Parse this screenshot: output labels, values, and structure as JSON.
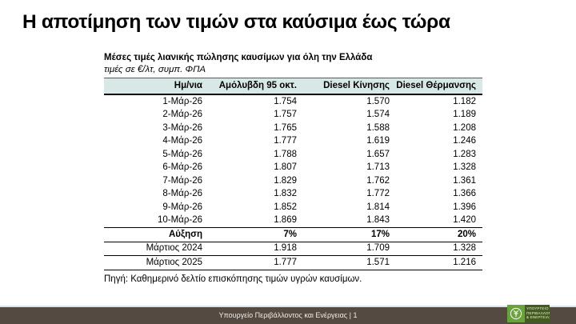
{
  "slide": {
    "title": "Η αποτίμηση των τιμών στα καύσιμα έως τώρα",
    "footer_text": "Υπουργείο Περιβάλλοντος και Ενέργειας | 1",
    "logo": {
      "name": "ministry-of-environment-and-energy-logo",
      "lines": [
        "ΥΠΟΥΡΓΕΙΟ",
        "ΠΕΡΙΒΑΛΛΟΝΤΟΣ",
        "& ΕΝΕΡΓΕΙΑΣ"
      ]
    }
  },
  "table_block": {
    "caption_bold": "Μέσες τιμές λιανικής πώλησης καυσίμων για όλη την Ελλάδα",
    "caption_italic": "τιμές σε €/λτ, συμπ. ΦΠΑ",
    "columns": [
      "Ημ/νια",
      "Αμόλυβδη 95 οκτ.",
      "Diesel Κίνησης",
      "Diesel Θέρμανσης"
    ],
    "rows": [
      {
        "style": "data",
        "cells": [
          "1-Μάρ-26",
          "1.754",
          "1.570",
          "1.182"
        ]
      },
      {
        "style": "data",
        "cells": [
          "2-Μάρ-26",
          "1.757",
          "1.574",
          "1.189"
        ]
      },
      {
        "style": "data",
        "cells": [
          "3-Μάρ-26",
          "1.765",
          "1.588",
          "1.208"
        ]
      },
      {
        "style": "data",
        "cells": [
          "4-Μάρ-26",
          "1.777",
          "1.619",
          "1.246"
        ]
      },
      {
        "style": "data",
        "cells": [
          "5-Μάρ-26",
          "1.788",
          "1.657",
          "1.283"
        ]
      },
      {
        "style": "data",
        "cells": [
          "6-Μάρ-26",
          "1.807",
          "1.713",
          "1.328"
        ]
      },
      {
        "style": "data",
        "cells": [
          "7-Μάρ-26",
          "1.829",
          "1.762",
          "1.361"
        ]
      },
      {
        "style": "data",
        "cells": [
          "8-Μάρ-26",
          "1.832",
          "1.772",
          "1.366"
        ]
      },
      {
        "style": "data",
        "cells": [
          "9-Μάρ-26",
          "1.852",
          "1.814",
          "1.396"
        ]
      },
      {
        "style": "data",
        "cells": [
          "10-Μάρ-26",
          "1.869",
          "1.843",
          "1.420"
        ]
      },
      {
        "style": "increase",
        "cells": [
          "Αύξηση",
          "7%",
          "17%",
          "20%"
        ]
      },
      {
        "style": "year",
        "cells": [
          "Μάρτιος 2024",
          "1.918",
          "1.709",
          "1.328"
        ]
      },
      {
        "style": "year",
        "cells": [
          "Μάρτιος 2025",
          "1.777",
          "1.571",
          "1.216"
        ]
      }
    ],
    "source": "Πηγή: Καθημερινό δελτίο επισκόπησης τιμών υγρών καυσίμων."
  },
  "colors": {
    "header_row_bg": "#D8E8E6",
    "increase_row_bg": "#D9D9D9",
    "footer_bar_bg": "#554A42",
    "footer_divider": "#DAE3ED",
    "logo_green": "#6AA23C",
    "logo_dark_green": "#435A20",
    "text": "#000000",
    "footer_text": "#EFECE8"
  }
}
